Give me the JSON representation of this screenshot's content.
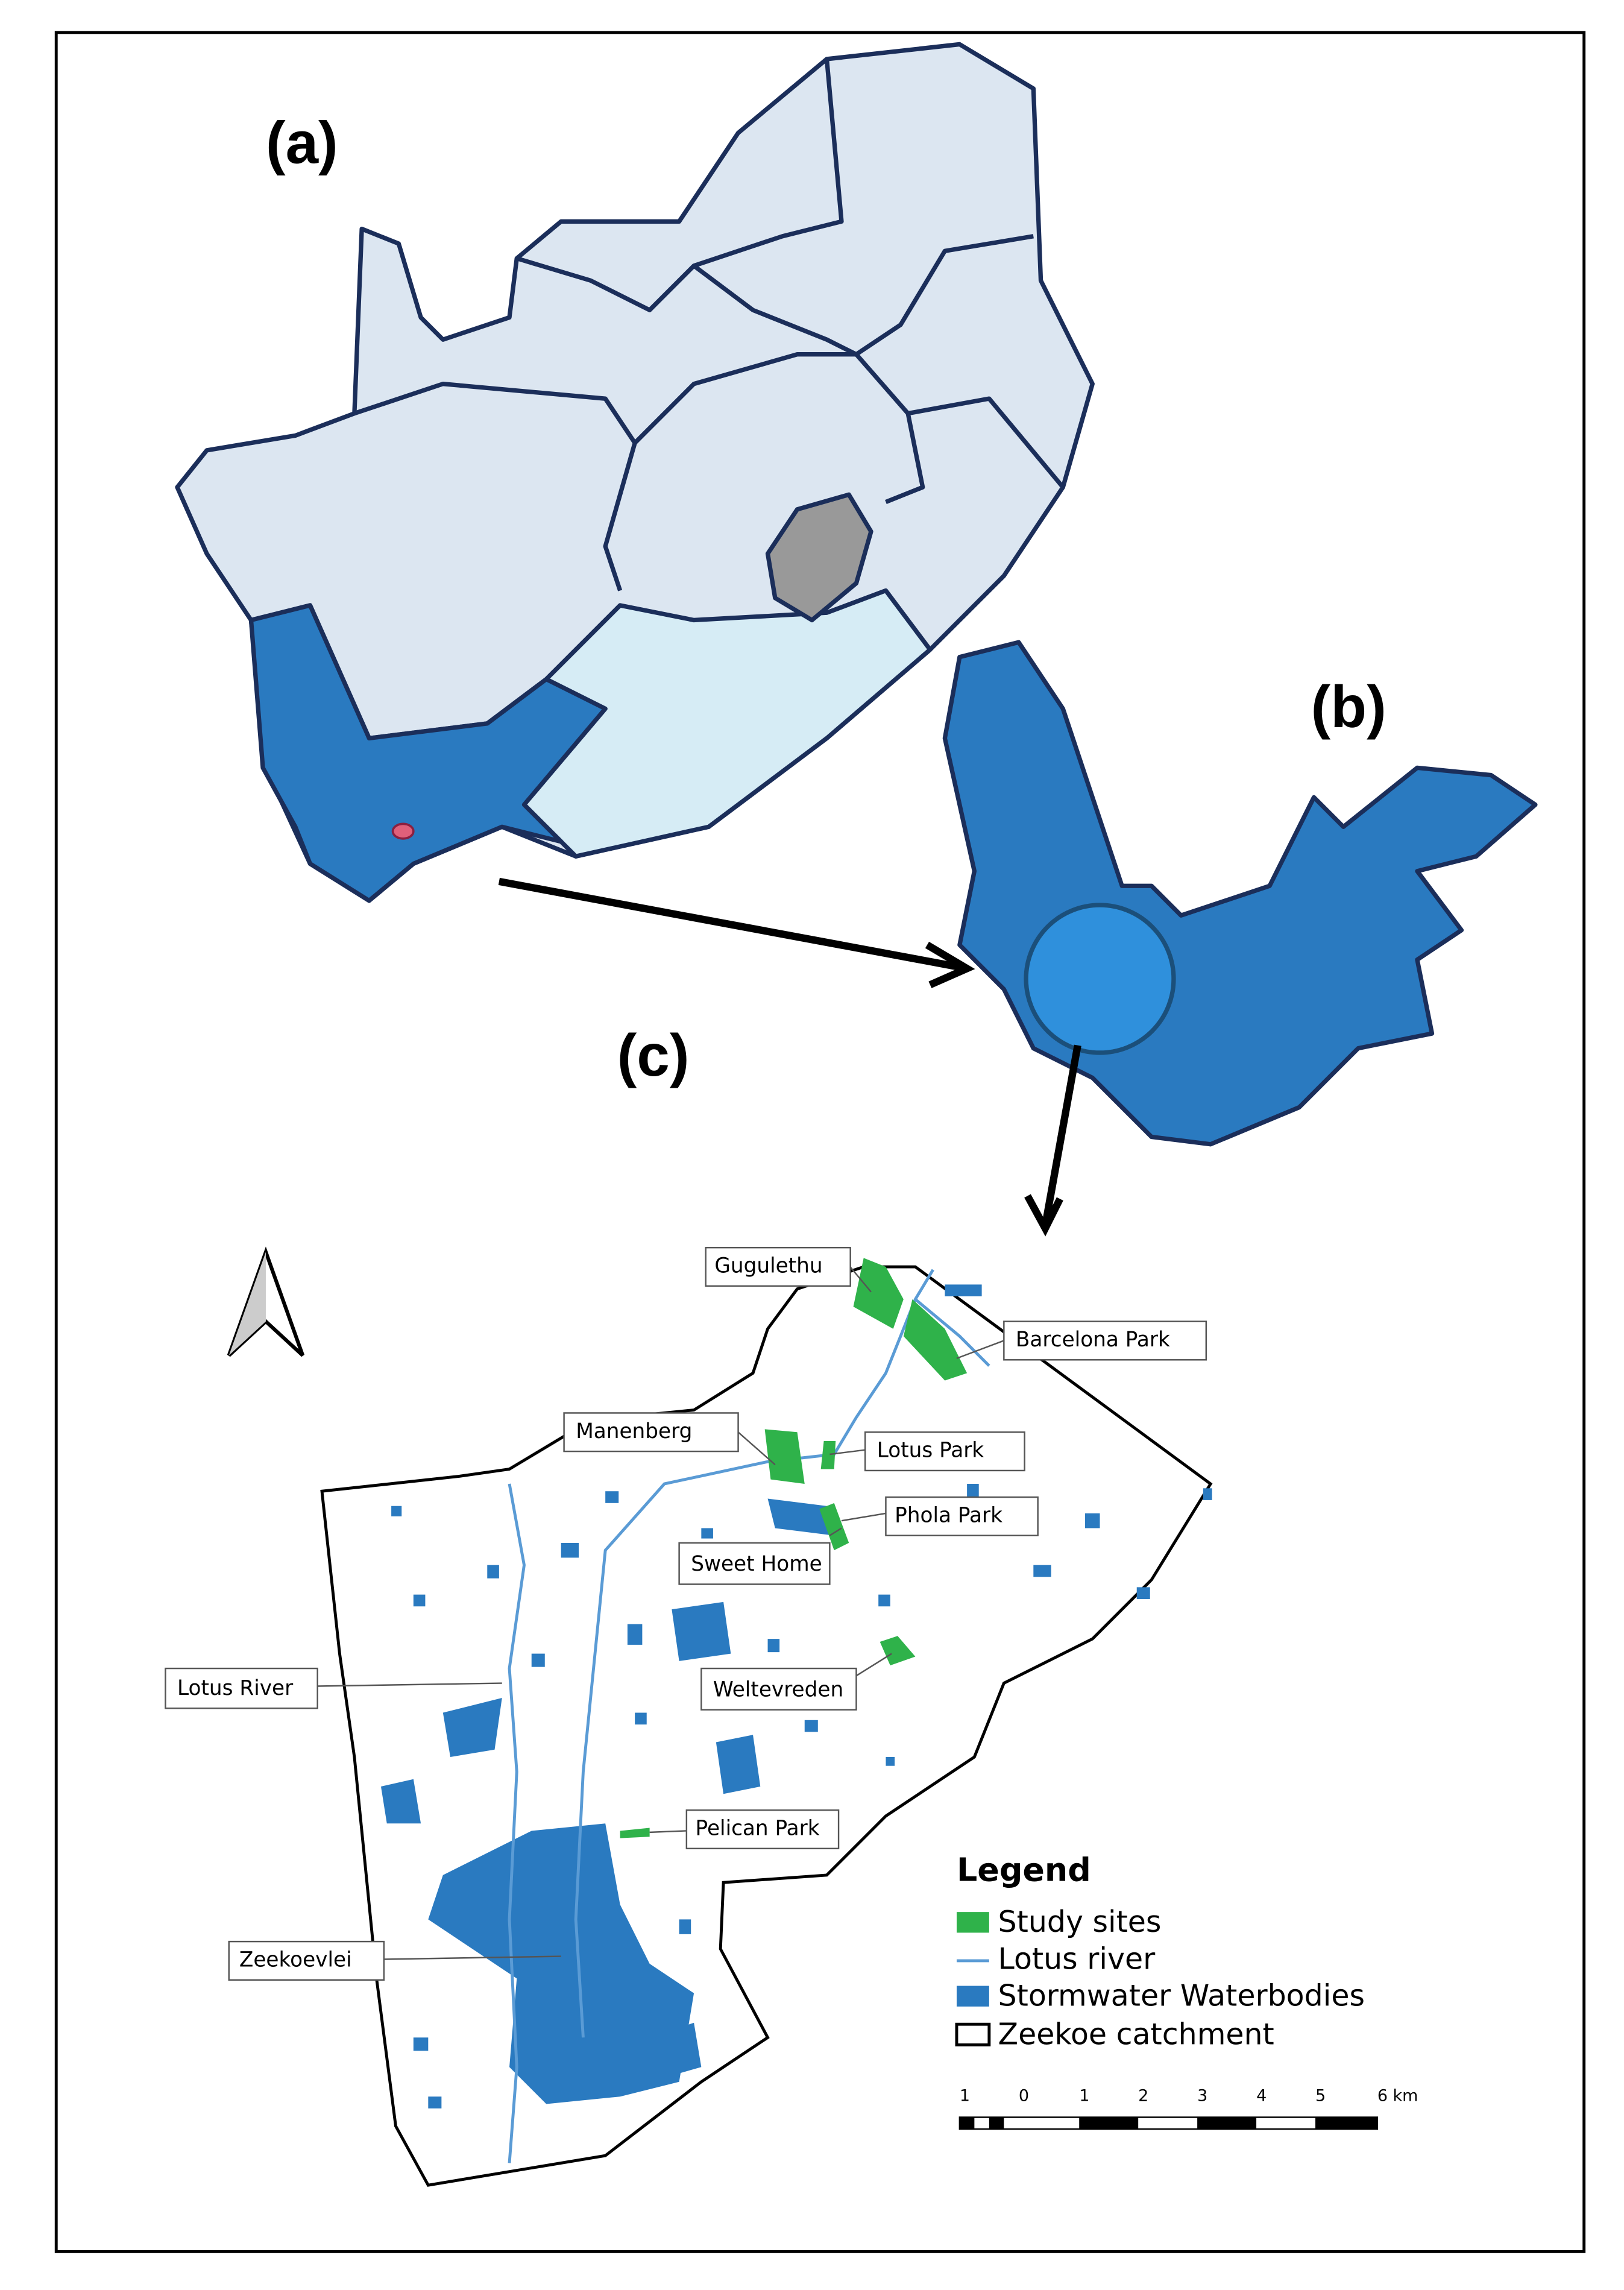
{
  "panels": {
    "a": "(a)",
    "b": "(b)",
    "c": "(c)"
  },
  "places": [
    "Gugulethu",
    "Barcelona Park",
    "Manenberg",
    "Lotus Park",
    "Phola Park",
    "Sweet Home",
    "Weltevreden",
    "Lotus River",
    "Pelican Park",
    "Zeekoevlei"
  ],
  "legend": {
    "title": "Legend",
    "items": [
      "Study sites",
      "Lotus river",
      "Stormwater Waterbodies",
      "Zeekoe catchment"
    ]
  },
  "scale_bar": {
    "labels": [
      "1",
      "0",
      "1",
      "2",
      "3",
      "4",
      "5",
      "6 km"
    ]
  }
}
